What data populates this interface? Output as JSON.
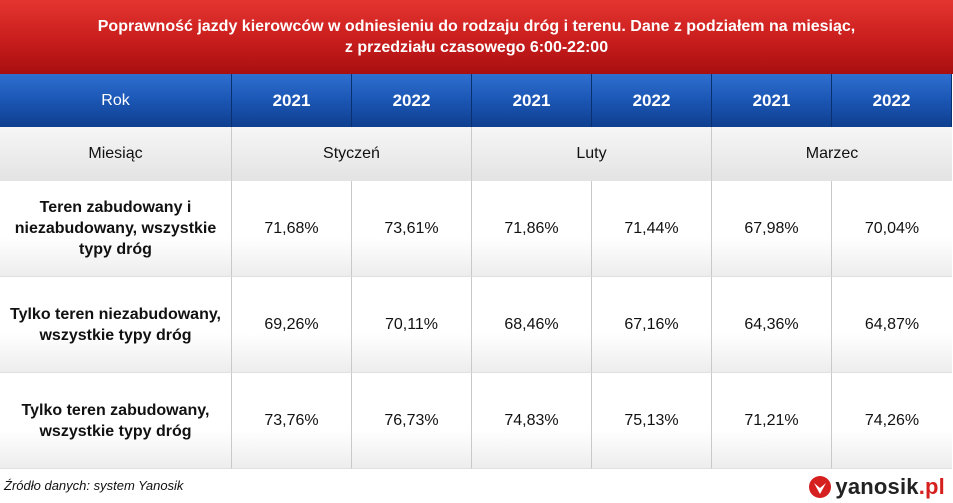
{
  "title": {
    "line1": "Poprawność jazdy kierowców w odniesieniu do rodzaju dróg i terenu. Dane z podziałem na miesiąc,",
    "line2": "z przedziału czasowego 6:00-22:00"
  },
  "header": {
    "year_label": "Rok",
    "years": [
      "2021",
      "2022",
      "2021",
      "2022",
      "2021",
      "2022"
    ],
    "month_label": "Miesiąc",
    "months": [
      "Styczeń",
      "Luty",
      "Marzec"
    ]
  },
  "rows": [
    {
      "label": "Teren zabudowany i niezabudowany, wszystkie typy dróg",
      "values": [
        "71,68%",
        "73,61%",
        "71,86%",
        "71,44%",
        "67,98%",
        "70,04%"
      ]
    },
    {
      "label": "Tylko teren niezabudowany, wszystkie typy dróg",
      "values": [
        "69,26%",
        "70,11%",
        "68,46%",
        "67,16%",
        "64,36%",
        "64,87%"
      ]
    },
    {
      "label": "Tylko teren zabudowany, wszystkie typy dróg",
      "values": [
        "73,76%",
        "76,73%",
        "74,83%",
        "75,13%",
        "71,21%",
        "74,26%"
      ]
    }
  ],
  "footer": {
    "source": "Źródło danych: system Yanosik",
    "logo_name": "yanosik",
    "logo_tld": ".pl"
  },
  "colors": {
    "title_red": "#c81d1d",
    "header_blue": "#1b56b4",
    "month_grey": "#e3e3e3",
    "logo_red": "#d61f1f"
  },
  "chart_data": {
    "type": "table",
    "title": "Poprawność jazdy kierowców w odniesieniu do rodzaju dróg i terenu. Dane z podziałem na miesiąc, z przedziału czasowego 6:00-22:00",
    "columns": [
      {
        "month": "Styczeń",
        "year": "2021"
      },
      {
        "month": "Styczeń",
        "year": "2022"
      },
      {
        "month": "Luty",
        "year": "2021"
      },
      {
        "month": "Luty",
        "year": "2022"
      },
      {
        "month": "Marzec",
        "year": "2021"
      },
      {
        "month": "Marzec",
        "year": "2022"
      }
    ],
    "series": [
      {
        "name": "Teren zabudowany i niezabudowany, wszystkie typy dróg",
        "values": [
          71.68,
          73.61,
          71.86,
          71.44,
          67.98,
          70.04
        ]
      },
      {
        "name": "Tylko teren niezabudowany, wszystkie typy dróg",
        "values": [
          69.26,
          70.11,
          68.46,
          67.16,
          64.36,
          64.87
        ]
      },
      {
        "name": "Tylko teren zabudowany, wszystkie typy dróg",
        "values": [
          73.76,
          76.73,
          74.83,
          75.13,
          71.21,
          74.26
        ]
      }
    ]
  }
}
